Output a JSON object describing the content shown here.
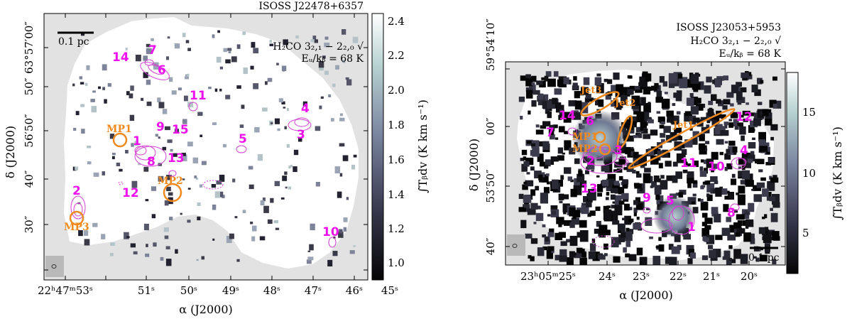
{
  "chart_data": [
    {
      "type": "heatmap",
      "source": "ISOSS J22478+6357",
      "line_label": "H₂CO 3₂,₁ − 2₂,₀ √",
      "energy_label": "Eᵤ/kᵦ = 68 K",
      "scalebar_label": "0.1 pc",
      "xlabel": "α (J2000)",
      "ylabel": "δ (J2000)",
      "xticks": [
        "22ʰ47ᵐ53ˢ",
        "51ˢ",
        "50ˢ",
        "49ˢ",
        "48ˢ",
        "47ˢ",
        "46ˢ",
        "45ˢ"
      ],
      "yticks": [
        "63°57′00″",
        "50″",
        "56′50″",
        "40″",
        "30″"
      ],
      "colorbar": {
        "label": "∫Tᵦdv (K km s⁻¹)",
        "range": [
          0.95,
          2.4
        ],
        "ticks": [
          "1.0",
          "1.2",
          "1.4",
          "1.6",
          "1.8",
          "2.0",
          "2.2",
          "2.4"
        ]
      },
      "cores": [
        "1",
        "2",
        "3",
        "4",
        "5",
        "6",
        "7",
        "8",
        "9",
        "10",
        "11",
        "12",
        "13",
        "14",
        "15"
      ],
      "mp_sources": [
        "MP1",
        "MP2",
        "MP3"
      ]
    },
    {
      "type": "heatmap",
      "source": "ISOSS J23053+5953",
      "line_label": "H₂CO 3₂,₁ − 2₂,₀ √",
      "energy_label": "Eᵤ/kᵦ = 68 K",
      "scalebar_label": "0.1 pc",
      "xlabel": "α (J2000)",
      "ylabel": "δ (J2000)",
      "xticks": [
        "23ʰ05ᵐ25ˢ",
        "24ˢ",
        "23ˢ",
        "22ˢ",
        "21ˢ",
        "20ˢ"
      ],
      "yticks": [
        "59°54′10″",
        "00″",
        "53′50″",
        "40″"
      ],
      "colorbar": {
        "label": "∫Tᵦdv (K km s⁻¹)",
        "range": [
          2,
          18
        ],
        "ticks": [
          "5",
          "10",
          "15"
        ]
      },
      "cores": [
        "1",
        "2",
        "3",
        "4",
        "5",
        "6",
        "7",
        "8",
        "9",
        "10",
        "11",
        "12",
        "13",
        "14"
      ],
      "mp_sources": [
        "MP1",
        "MP2"
      ],
      "jets": [
        "Jet1",
        "Jet2",
        "Jet3"
      ]
    }
  ]
}
